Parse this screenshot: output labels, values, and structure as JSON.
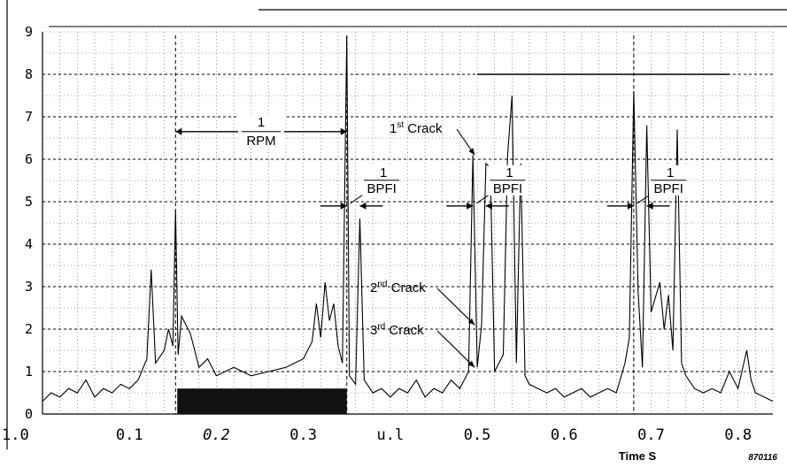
{
  "chart_data": {
    "type": "line",
    "title": "",
    "xlabel": "Time S",
    "ylabel": "",
    "figure_id": "870116",
    "xlim": [
      0.0,
      0.84
    ],
    "ylim": [
      0,
      9
    ],
    "x_tick_labels": [
      "1.0",
      "0.1",
      "0.2",
      "0.3",
      "u.l",
      "0.5",
      "0.6",
      "0.7",
      "0.8"
    ],
    "y_tick_labels": [
      "0",
      "1",
      "2",
      "3",
      "4",
      "5",
      "6",
      "7",
      "8",
      "9"
    ],
    "grid": true,
    "series": [
      {
        "points": [
          [
            0.0,
            0.3
          ],
          [
            0.01,
            0.5
          ],
          [
            0.02,
            0.4
          ],
          [
            0.03,
            0.6
          ],
          [
            0.04,
            0.5
          ],
          [
            0.05,
            0.8
          ],
          [
            0.06,
            0.4
          ],
          [
            0.07,
            0.6
          ],
          [
            0.08,
            0.5
          ],
          [
            0.09,
            0.7
          ],
          [
            0.1,
            0.6
          ],
          [
            0.11,
            0.8
          ],
          [
            0.12,
            1.3
          ],
          [
            0.125,
            3.4
          ],
          [
            0.13,
            1.2
          ],
          [
            0.14,
            1.5
          ],
          [
            0.145,
            2.0
          ],
          [
            0.15,
            1.6
          ],
          [
            0.153,
            4.8
          ],
          [
            0.156,
            1.4
          ],
          [
            0.16,
            2.3
          ],
          [
            0.17,
            1.9
          ],
          [
            0.18,
            1.1
          ],
          [
            0.19,
            1.3
          ],
          [
            0.2,
            0.9
          ],
          [
            0.22,
            1.1
          ],
          [
            0.24,
            0.9
          ],
          [
            0.26,
            1.0
          ],
          [
            0.28,
            1.1
          ],
          [
            0.29,
            1.2
          ],
          [
            0.3,
            1.3
          ],
          [
            0.31,
            1.7
          ],
          [
            0.315,
            2.6
          ],
          [
            0.32,
            1.8
          ],
          [
            0.325,
            3.1
          ],
          [
            0.33,
            2.2
          ],
          [
            0.335,
            2.6
          ],
          [
            0.34,
            1.6
          ],
          [
            0.345,
            1.2
          ],
          [
            0.35,
            8.9
          ],
          [
            0.353,
            0.9
          ],
          [
            0.36,
            0.7
          ],
          [
            0.365,
            4.6
          ],
          [
            0.37,
            0.8
          ],
          [
            0.38,
            0.5
          ],
          [
            0.39,
            0.6
          ],
          [
            0.4,
            0.4
          ],
          [
            0.41,
            0.6
          ],
          [
            0.42,
            0.5
          ],
          [
            0.43,
            0.8
          ],
          [
            0.44,
            0.4
          ],
          [
            0.45,
            0.6
          ],
          [
            0.46,
            0.5
          ],
          [
            0.47,
            0.8
          ],
          [
            0.48,
            0.6
          ],
          [
            0.49,
            1.0
          ],
          [
            0.495,
            6.1
          ],
          [
            0.5,
            1.1
          ],
          [
            0.505,
            2.1
          ],
          [
            0.51,
            5.9
          ],
          [
            0.515,
            5.8
          ],
          [
            0.52,
            1.0
          ],
          [
            0.53,
            1.4
          ],
          [
            0.535,
            6.1
          ],
          [
            0.54,
            7.5
          ],
          [
            0.545,
            1.2
          ],
          [
            0.55,
            5.9
          ],
          [
            0.555,
            0.9
          ],
          [
            0.56,
            0.7
          ],
          [
            0.57,
            0.6
          ],
          [
            0.58,
            0.5
          ],
          [
            0.59,
            0.6
          ],
          [
            0.6,
            0.4
          ],
          [
            0.61,
            0.5
          ],
          [
            0.62,
            0.6
          ],
          [
            0.63,
            0.4
          ],
          [
            0.64,
            0.5
          ],
          [
            0.65,
            0.6
          ],
          [
            0.66,
            0.5
          ],
          [
            0.67,
            1.2
          ],
          [
            0.675,
            1.8
          ],
          [
            0.68,
            7.6
          ],
          [
            0.685,
            2.9
          ],
          [
            0.69,
            1.1
          ],
          [
            0.695,
            6.8
          ],
          [
            0.7,
            2.4
          ],
          [
            0.71,
            3.1
          ],
          [
            0.715,
            2.0
          ],
          [
            0.72,
            2.8
          ],
          [
            0.725,
            1.5
          ],
          [
            0.73,
            6.7
          ],
          [
            0.735,
            1.2
          ],
          [
            0.74,
            0.9
          ],
          [
            0.75,
            0.6
          ],
          [
            0.76,
            0.5
          ],
          [
            0.77,
            0.6
          ],
          [
            0.78,
            0.5
          ],
          [
            0.79,
            1.0
          ],
          [
            0.8,
            0.6
          ],
          [
            0.81,
            1.5
          ],
          [
            0.815,
            0.8
          ],
          [
            0.82,
            0.5
          ],
          [
            0.83,
            0.4
          ],
          [
            0.84,
            0.3
          ]
        ]
      }
    ],
    "dense_bands": [
      {
        "x": [
          0.155,
          0.35
        ],
        "ymax": 0.6
      }
    ],
    "solid_hlines": [
      {
        "y": 8.0,
        "x": [
          0.5,
          0.79
        ]
      }
    ],
    "markers": [
      0.153,
      0.35,
      0.68
    ],
    "annotations": {
      "rpm": {
        "num": "1",
        "den": "RPM",
        "x": [
          0.153,
          0.35
        ],
        "y": 6.65
      },
      "bpfi": [
        {
          "num": "1",
          "den": "BPFI",
          "x": [
            0.35,
            0.365
          ],
          "y": 4.9
        },
        {
          "num": "1",
          "den": "BPFI",
          "x": [
            0.495,
            0.51
          ],
          "y": 4.9
        },
        {
          "num": "1",
          "den": "BPFI",
          "x": [
            0.68,
            0.695
          ],
          "y": 4.9
        }
      ],
      "cracks": [
        {
          "label": "1",
          "sup": "st",
          "word": "Crack",
          "target": [
            0.497,
            6.1
          ]
        },
        {
          "label": "2",
          "sup": "nd",
          "word": "Crack",
          "target": [
            0.497,
            2.1
          ]
        },
        {
          "label": "3",
          "sup": "rd",
          "word": "Crack",
          "target": [
            0.497,
            1.1
          ]
        }
      ]
    }
  }
}
